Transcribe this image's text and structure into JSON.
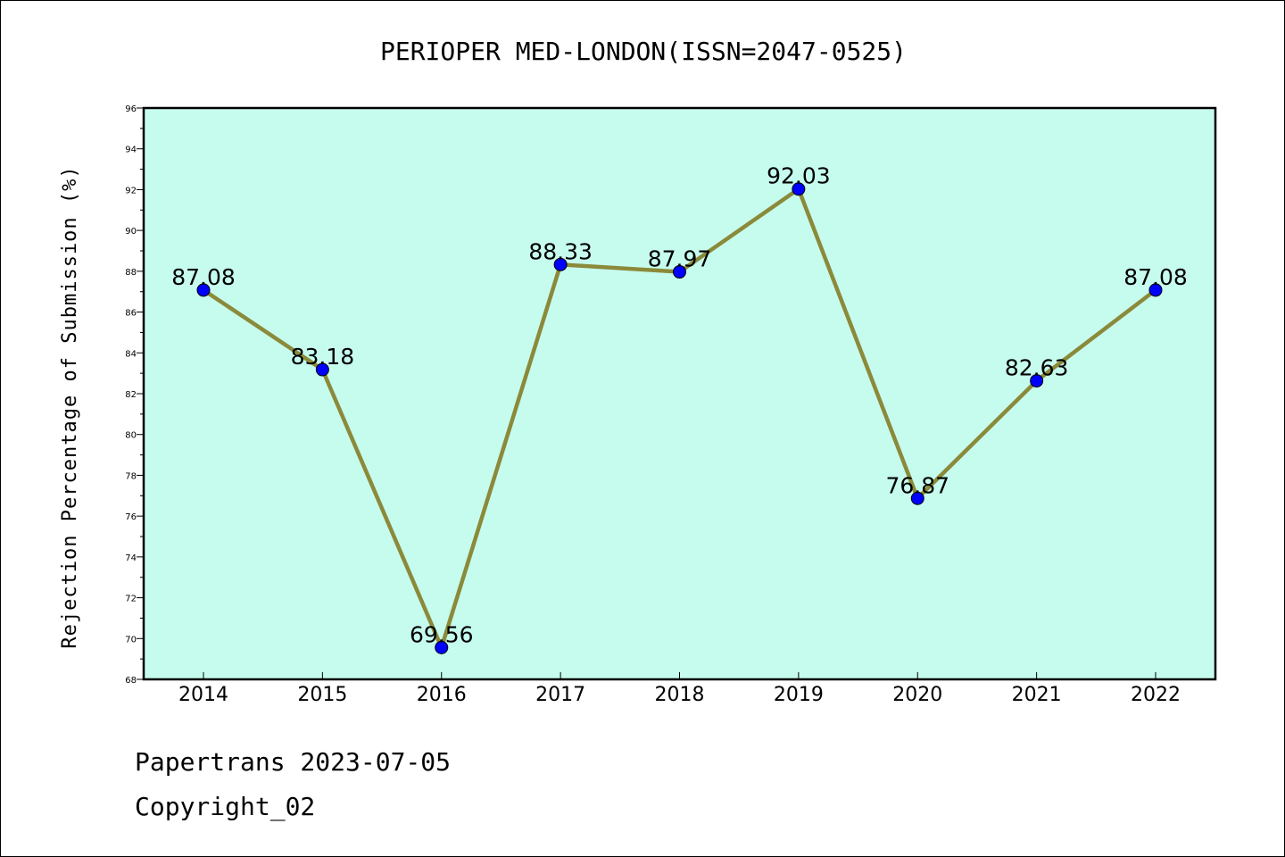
{
  "chart_data": {
    "type": "line",
    "title": "PERIOPER MED-LONDON(ISSN=2047-0525)",
    "xlabel": "",
    "ylabel": "Rejection Percentage of Submission (%)",
    "categories": [
      "2014",
      "2015",
      "2016",
      "2017",
      "2018",
      "2019",
      "2020",
      "2021",
      "2022"
    ],
    "series": [
      {
        "values": [
          87.08,
          83.18,
          69.56,
          88.33,
          87.97,
          92.03,
          76.87,
          82.63,
          87.08
        ]
      }
    ],
    "data_labels": [
      "87.08",
      "83.18",
      "69.56",
      "88.33",
      "87.97",
      "92.03",
      "76.87",
      "82.63",
      "87.08"
    ],
    "ylim": [
      68,
      96
    ],
    "yticks": [
      "68",
      "70",
      "72",
      "74",
      "76",
      "78",
      "80",
      "82",
      "84",
      "86",
      "88",
      "90",
      "92",
      "94",
      "96"
    ],
    "grid": false,
    "colors": {
      "plot_bg": "#c6fcee",
      "line": "#8b8a3a",
      "marker": "#0000ff"
    }
  },
  "footer": {
    "line1": "Papertrans 2023-07-05",
    "line2": "Copyright_02"
  }
}
